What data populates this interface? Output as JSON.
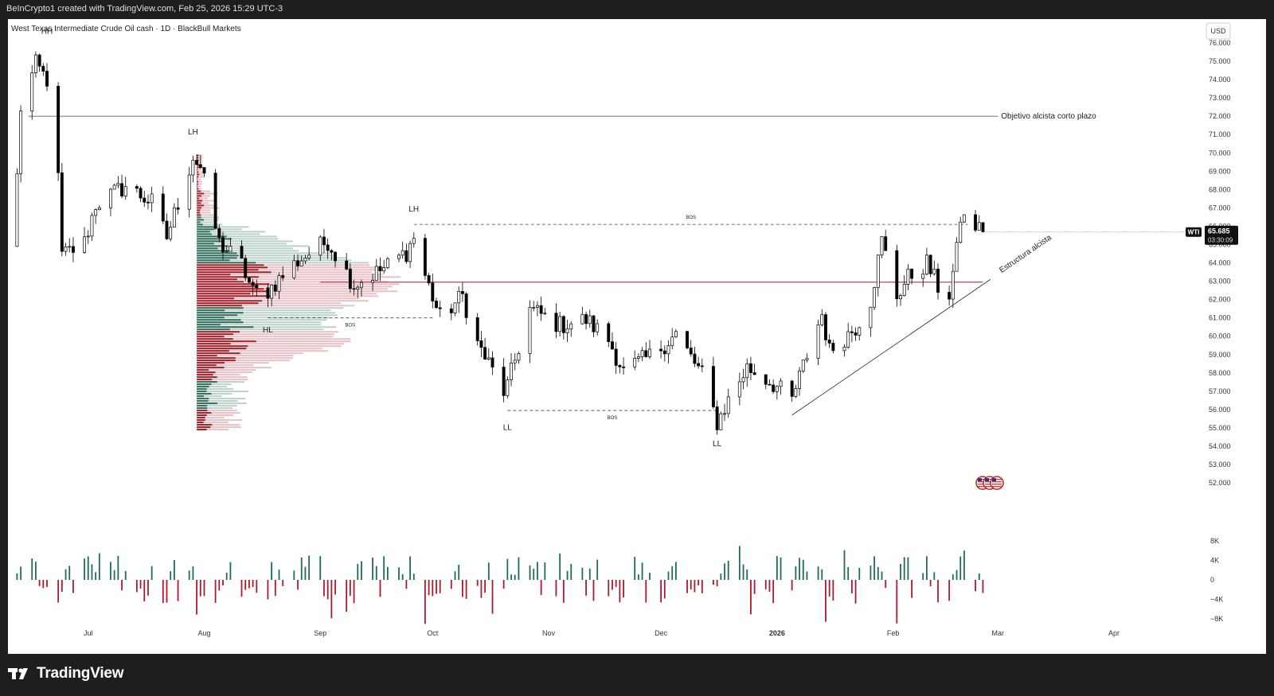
{
  "header": {
    "attribution": "BeInCrypto1 created with TradingView.com, Feb 25, 2026 15:29 UTC-3"
  },
  "footer": {
    "brand": "TradingView"
  },
  "colors": {
    "up": "#ffffff",
    "down": "#000000",
    "wick": "#000000",
    "vol_up": "#1e6b5a",
    "vol_down": "#b2182b",
    "vp_red": "#a11b26",
    "vp_red_light": "#e6b9be",
    "vp_green": "#2d6a58",
    "vp_green_light": "#b4cbc4",
    "poc_line": "#b2182b"
  },
  "chart_data": {
    "type": "candlestick",
    "title": "West Texas Intermediate Crude Oil cash · 1D · BlackBull Markets",
    "currency": "USD",
    "symbol": "WTI",
    "last_price": "65.685",
    "countdown": "03:30:09",
    "ylim": [
      50.4,
      77.3
    ],
    "y_ticks": [
      "76.000",
      "75.000",
      "74.000",
      "73.000",
      "72.000",
      "71.000",
      "70.000",
      "69.000",
      "68.000",
      "67.000",
      "66.000",
      "65.000",
      "64.000",
      "63.000",
      "62.000",
      "61.000",
      "60.000",
      "59.000",
      "58.000",
      "57.000",
      "56.000",
      "55.000",
      "54.000",
      "53.000",
      "52.000"
    ],
    "x_ticks": [
      {
        "label": "Jul",
        "date": "2025-07-01"
      },
      {
        "label": "Aug",
        "date": "2025-08-01"
      },
      {
        "label": "Sep",
        "date": "2025-09-01"
      },
      {
        "label": "Oct",
        "date": "2025-10-01"
      },
      {
        "label": "Nov",
        "date": "2025-11-01"
      },
      {
        "label": "Dec",
        "date": "2025-12-01"
      },
      {
        "label": "2026",
        "date": "2026-01-01"
      },
      {
        "label": "Feb",
        "date": "2026-02-01"
      },
      {
        "label": "Mar",
        "date": "2026-03-01"
      },
      {
        "label": "Apr",
        "date": "2026-04-01"
      }
    ],
    "path_points": [
      {
        "date": "2025-06-11",
        "close": 64.9
      },
      {
        "date": "2025-06-13",
        "close": 72.5
      },
      {
        "date": "2025-06-17",
        "close": 74.8
      },
      {
        "date": "2025-06-20",
        "close": 74.0
      },
      {
        "date": "2025-06-23",
        "close": 68.5
      },
      {
        "date": "2025-06-24",
        "close": 64.4
      },
      {
        "date": "2025-06-30",
        "close": 65.1
      },
      {
        "date": "2025-07-03",
        "close": 67.2
      },
      {
        "date": "2025-07-11",
        "close": 68.2
      },
      {
        "date": "2025-07-18",
        "close": 67.3
      },
      {
        "date": "2025-07-22",
        "close": 65.4
      },
      {
        "date": "2025-07-29",
        "close": 69.8
      },
      {
        "date": "2025-07-31",
        "close": 69.2
      },
      {
        "date": "2025-08-05",
        "close": 65.1
      },
      {
        "date": "2025-08-11",
        "close": 63.9
      },
      {
        "date": "2025-08-14",
        "close": 62.4
      },
      {
        "date": "2025-08-18",
        "close": 62.5
      },
      {
        "date": "2025-08-26",
        "close": 64.1
      },
      {
        "date": "2025-09-03",
        "close": 65.2
      },
      {
        "date": "2025-09-10",
        "close": 62.8
      },
      {
        "date": "2025-09-18",
        "close": 63.7
      },
      {
        "date": "2025-09-24",
        "close": 64.6
      },
      {
        "date": "2025-09-26",
        "close": 65.4
      },
      {
        "date": "2025-09-29",
        "close": 63.3
      },
      {
        "date": "2025-10-03",
        "close": 61.0
      },
      {
        "date": "2025-10-09",
        "close": 62.2
      },
      {
        "date": "2025-10-13",
        "close": 59.6
      },
      {
        "date": "2025-10-20",
        "close": 57.0
      },
      {
        "date": "2025-10-21",
        "close": 57.3
      },
      {
        "date": "2025-10-27",
        "close": 61.5
      },
      {
        "date": "2025-11-04",
        "close": 60.6
      },
      {
        "date": "2025-11-11",
        "close": 60.9
      },
      {
        "date": "2025-11-17",
        "close": 59.8
      },
      {
        "date": "2025-11-21",
        "close": 58.1
      },
      {
        "date": "2025-11-28",
        "close": 58.9
      },
      {
        "date": "2025-12-05",
        "close": 60.1
      },
      {
        "date": "2025-12-12",
        "close": 57.9
      },
      {
        "date": "2025-12-16",
        "close": 55.3
      },
      {
        "date": "2025-12-19",
        "close": 56.5
      },
      {
        "date": "2025-12-24",
        "close": 58.3
      },
      {
        "date": "2025-12-31",
        "close": 57.4
      },
      {
        "date": "2026-01-05",
        "close": 56.5
      },
      {
        "date": "2026-01-09",
        "close": 59.0
      },
      {
        "date": "2026-01-13",
        "close": 61.2
      },
      {
        "date": "2026-01-15",
        "close": 59.2
      },
      {
        "date": "2026-01-22",
        "close": 60.5
      },
      {
        "date": "2026-01-26",
        "close": 62.0
      },
      {
        "date": "2026-01-29",
        "close": 65.2
      },
      {
        "date": "2026-02-02",
        "close": 62.2
      },
      {
        "date": "2026-02-05",
        "close": 63.2
      },
      {
        "date": "2026-02-10",
        "close": 64.0
      },
      {
        "date": "2026-02-13",
        "close": 62.7
      },
      {
        "date": "2026-02-16",
        "close": 62.3
      },
      {
        "date": "2026-02-18",
        "close": 64.6
      },
      {
        "date": "2026-02-19",
        "close": 66.5
      },
      {
        "date": "2026-02-23",
        "close": 66.0
      },
      {
        "date": "2026-02-25",
        "close": 65.7
      }
    ],
    "levels": [
      {
        "name": "target-line",
        "price": 72.0,
        "label": "Objetivo alcista corto plazo",
        "from": "2025-06-15",
        "to": "2026-03-01"
      },
      {
        "name": "poc-line",
        "price": 62.95,
        "label": "",
        "from": "2025-09-01",
        "to": "2026-02-25"
      },
      {
        "name": "bos-upper",
        "price": 66.1,
        "label": "BOS",
        "from": "2025-09-26",
        "to": "2026-02-21"
      },
      {
        "name": "bos-lower",
        "price": 55.95,
        "label": "BOS",
        "from": "2025-10-21",
        "to": "2025-12-16"
      },
      {
        "name": "bos-hl",
        "price": 61.0,
        "label": "BOS",
        "from": "2025-08-18",
        "to": "2025-10-01"
      }
    ],
    "trendline": {
      "label": "Estructura alcista",
      "from": {
        "date": "2026-01-05",
        "price": 55.7
      },
      "to": {
        "date": "2026-02-27",
        "price": 63.1
      }
    },
    "annotations": [
      {
        "label": "HH",
        "date": "2025-06-20",
        "price": 76.5
      },
      {
        "label": "LH",
        "date": "2025-07-29",
        "price": 71.0
      },
      {
        "label": "LH",
        "date": "2025-09-26",
        "price": 66.8
      },
      {
        "label": "HL",
        "date": "2025-08-18",
        "price": 60.2
      },
      {
        "label": "LL",
        "date": "2025-10-21",
        "price": 54.9
      },
      {
        "label": "LL",
        "date": "2025-12-16",
        "price": 54.0
      }
    ],
    "volume_profile": {
      "from_date": "2025-07-30",
      "price_low": 54.9,
      "price_high": 69.9
    },
    "volume_oscillator": {
      "ticks": [
        "8K",
        "4K",
        "0",
        "−4K",
        "−8K"
      ],
      "range": [
        -10,
        10
      ]
    }
  }
}
